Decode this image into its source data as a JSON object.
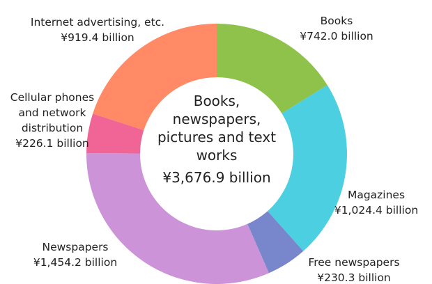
{
  "chart_data": {
    "type": "donut",
    "categories": [
      "Books",
      "Magazines",
      "Free newspapers",
      "Newspapers",
      "Cellular phones and network distribution",
      "Internet advertising, etc."
    ],
    "values": [
      742.0,
      1024.4,
      230.3,
      1454.2,
      226.1,
      919.4
    ],
    "value_labels": [
      "¥742.0 billion",
      "¥1,024.4 billion",
      "¥230.3 billion",
      "¥1,454.2 billion",
      "¥226.1 billion",
      "¥919.4 billion"
    ],
    "colors": [
      "#8ec24b",
      "#4ccfe0",
      "#7887cb",
      "#cd93d9",
      "#f06595",
      "#ff8a65"
    ],
    "center_lines": [
      "Books,",
      "newspapers,",
      "pictures and text",
      "works"
    ],
    "center_value": "¥3,676.9 billion"
  }
}
